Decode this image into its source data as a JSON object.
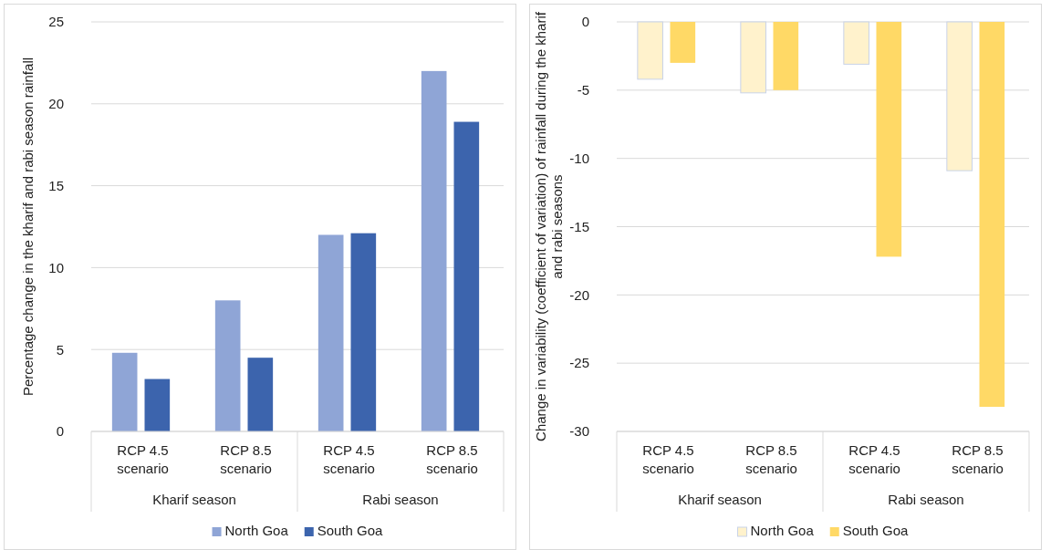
{
  "chart_data": [
    {
      "type": "bar",
      "ylabel": "Percentage change in the kharif and rabi season rainfall",
      "categories": [
        "RCP 4.5 scenario",
        "RCP 8.5 scenario",
        "RCP 4.5 scenario",
        "RCP 8.5 scenario"
      ],
      "annotations": [
        "Kharif season",
        "Rabi season"
      ],
      "series": [
        {
          "name": "North Goa",
          "color": "#8fa5d6",
          "values": [
            4.8,
            8.0,
            12.0,
            22.0
          ]
        },
        {
          "name": "South Goa",
          "color": "#3c64ad",
          "values": [
            3.2,
            4.5,
            12.1,
            18.9
          ]
        }
      ],
      "ylim": [
        0,
        25
      ],
      "yticks": [
        0,
        5,
        10,
        15,
        20,
        25
      ],
      "grid": "y",
      "legend": "bottom"
    },
    {
      "type": "bar",
      "ylabel": "Change in variability (coefficient of variation) of rainfall during the kharif and rabi seasons",
      "categories": [
        "RCP 4.5 scenario",
        "RCP 8.5 scenario",
        "RCP 4.5 scenario",
        "RCP 8.5 scenario"
      ],
      "annotations": [
        "Kharif season",
        "Rabi season"
      ],
      "series": [
        {
          "name": "North Goa",
          "color": "#fff2cc",
          "values": [
            -4.2,
            -5.2,
            -3.1,
            -10.9
          ]
        },
        {
          "name": "South Goa",
          "color": "#ffd966",
          "values": [
            -3.0,
            -5.0,
            -17.2,
            -28.2
          ]
        }
      ],
      "ylim": [
        -30,
        0
      ],
      "yticks": [
        -30,
        -25,
        -20,
        -15,
        -10,
        -5,
        0
      ],
      "grid": "y",
      "legend": "bottom"
    }
  ]
}
